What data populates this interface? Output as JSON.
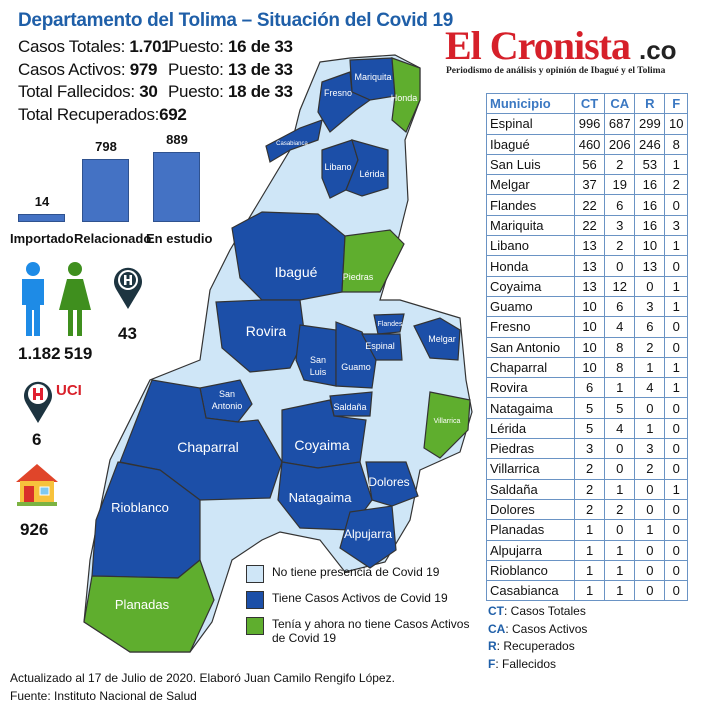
{
  "header": {
    "title": "Departamento del Tolima – Situación del Covid 19"
  },
  "stats": [
    {
      "label": "Casos Totales: ",
      "value": "1.701",
      "rank_label": "Puesto: ",
      "rank": "16 de 33"
    },
    {
      "label": "Casos Activos: ",
      "value": "979",
      "rank_label": "Puesto: ",
      "rank": "13 de 33"
    },
    {
      "label": "Total Fallecidos: ",
      "value": "30",
      "rank_label": "Puesto: ",
      "rank": "18 de 33"
    },
    {
      "label": "Total Recuperados: ",
      "value": "692"
    }
  ],
  "logo": {
    "name": "El Cronista",
    "suffix": ".co",
    "tagline": "Periodismo de análisis y opinión de Ibagué y el Tolima"
  },
  "chart_data": {
    "type": "bar",
    "categories": [
      "Importado",
      "Relacionado",
      "En estudio"
    ],
    "values": [
      14,
      798,
      889
    ],
    "title": "",
    "xlabel": "",
    "ylabel": "",
    "ylim": [
      0,
      889
    ]
  },
  "gender": {
    "men": "1.182",
    "women": "519"
  },
  "hospital": {
    "value": "43"
  },
  "uci": {
    "label": "UCI",
    "value": "6"
  },
  "home": {
    "value": "926"
  },
  "table": {
    "headers": [
      "Municipio",
      "CT",
      "CA",
      "R",
      "F"
    ],
    "rows": [
      [
        "Espinal",
        "996",
        "687",
        "299",
        "10"
      ],
      [
        "Ibagué",
        "460",
        "206",
        "246",
        "8"
      ],
      [
        "San Luis",
        "56",
        "2",
        "53",
        "1"
      ],
      [
        "Melgar",
        "37",
        "19",
        "16",
        "2"
      ],
      [
        "Flandes",
        "22",
        "6",
        "16",
        "0"
      ],
      [
        "Mariquita",
        "22",
        "3",
        "16",
        "3"
      ],
      [
        "Libano",
        "13",
        "2",
        "10",
        "1"
      ],
      [
        "Honda",
        "13",
        "0",
        "13",
        "0"
      ],
      [
        "Coyaima",
        "13",
        "12",
        "0",
        "1"
      ],
      [
        "Guamo",
        "10",
        "6",
        "3",
        "1"
      ],
      [
        "Fresno",
        "10",
        "4",
        "6",
        "0"
      ],
      [
        "San Antonio",
        "10",
        "8",
        "2",
        "0"
      ],
      [
        "Chaparral",
        "10",
        "8",
        "1",
        "1"
      ],
      [
        "Rovira",
        "6",
        "1",
        "4",
        "1"
      ],
      [
        "Natagaima",
        "5",
        "5",
        "0",
        "0"
      ],
      [
        "Lérida",
        "5",
        "4",
        "1",
        "0"
      ],
      [
        "Piedras",
        "3",
        "0",
        "3",
        "0"
      ],
      [
        "Villarrica",
        "2",
        "0",
        "2",
        "0"
      ],
      [
        "Saldaña",
        "2",
        "1",
        "0",
        "1"
      ],
      [
        "Dolores",
        "2",
        "2",
        "0",
        "0"
      ],
      [
        "Planadas",
        "1",
        "0",
        "1",
        "0"
      ],
      [
        "Alpujarra",
        "1",
        "1",
        "0",
        "0"
      ],
      [
        "Rioblanco",
        "1",
        "1",
        "0",
        "0"
      ],
      [
        "Casabianca",
        "1",
        "1",
        "0",
        "0"
      ]
    ]
  },
  "abbreviations": [
    {
      "key": "CT",
      "text": ": Casos Totales"
    },
    {
      "key": "CA",
      "text": ": Casos Activos"
    },
    {
      "key": "R",
      "text": ": Recuperados"
    },
    {
      "key": "F",
      "text": ": Fallecidos"
    }
  ],
  "legend": [
    {
      "label": "No tiene presencia de Covid 19",
      "color": "#cfe6f7"
    },
    {
      "label": "Tiene Casos Activos de Covid 19",
      "color": "#1c4fa8"
    },
    {
      "label": "Tenía y ahora no tiene Casos Activos de Covid 19",
      "color": "#5fae2e"
    }
  ],
  "map_labels": {
    "mariquita": "Mariquita",
    "fresno": "Fresno",
    "honda": "Honda",
    "casabianca": "Casabianca",
    "libano": "Libano",
    "lerida": "Lérida",
    "ibague": "Ibagué",
    "piedras": "Piedras",
    "rovira": "Rovira",
    "flandes": "Flandes",
    "espinal": "Espinal",
    "melgar": "Melgar",
    "sanluis1": "San",
    "sanluis2": "Luis",
    "guamo": "Guamo",
    "saldana": "Saldaña",
    "sanantonio1": "San",
    "sanantonio2": "Antonio",
    "chaparral": "Chaparral",
    "coyaima": "Coyaima",
    "villarrica": "Villarrica",
    "natagaima": "Natagaima",
    "dolores": "Dolores",
    "alpujarra": "Alpujarra",
    "rioblanco": "Rioblanco",
    "planadas": "Planadas"
  },
  "footer": {
    "line1": "Actualizado al 17 de Julio de 2020. Elaboró Juan Camilo Rengifo López.",
    "line2": "Fuente: Instituto Nacional de Salud"
  }
}
